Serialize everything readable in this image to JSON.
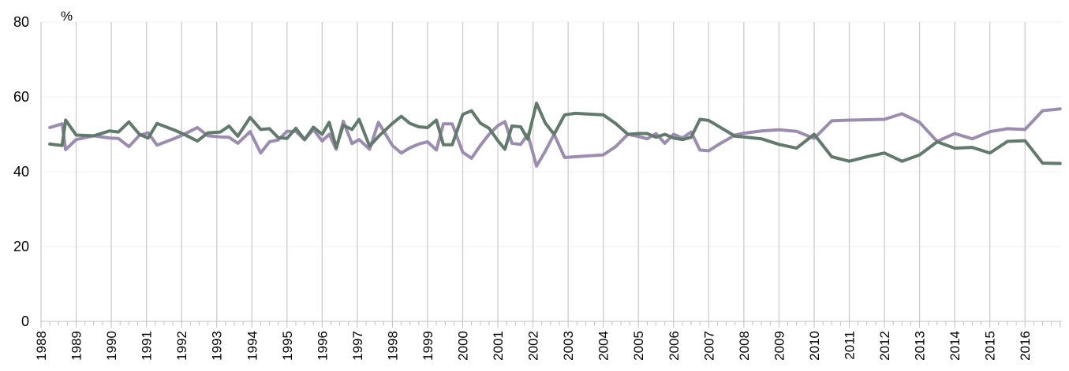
{
  "chart_data": {
    "type": "line",
    "title": "",
    "xlabel": "",
    "ylabel": "%",
    "ylim": [
      0,
      80
    ],
    "yticks": [
      "0",
      "20",
      "40",
      "60",
      "80"
    ],
    "xlim": [
      1988,
      2017.05
    ],
    "xticks": [
      "1988",
      "1989",
      "1990",
      "1991",
      "1992",
      "1993",
      "1994",
      "1995",
      "1996",
      "1997",
      "1998",
      "1999",
      "2000",
      "2001",
      "2002",
      "2003",
      "2004",
      "2005",
      "2006",
      "2007",
      "2008",
      "2009",
      "2010",
      "2011",
      "2012",
      "2013",
      "2014",
      "2015",
      "2016"
    ],
    "grid": "vertical",
    "legend": "none",
    "series": [
      {
        "color": "#9b8cb0",
        "x": [
          1988.25,
          1988.6,
          1988.7,
          1989.0,
          1989.5,
          1989.95,
          1990.2,
          1990.5,
          1990.8,
          1991.05,
          1991.3,
          1991.8,
          1992.05,
          1992.45,
          1992.75,
          1993.1,
          1993.35,
          1993.6,
          1993.95,
          1994.25,
          1994.5,
          1994.75,
          1995.0,
          1995.25,
          1995.5,
          1995.75,
          1996.0,
          1996.2,
          1996.4,
          1996.6,
          1996.85,
          1997.05,
          1997.35,
          1997.6,
          1998.0,
          1998.25,
          1998.5,
          1998.75,
          1999.0,
          1999.25,
          1999.45,
          1999.7,
          2000.0,
          2000.25,
          2000.5,
          2000.75,
          2001.0,
          2001.2,
          2001.4,
          2001.65,
          2001.85,
          2002.1,
          2002.35,
          2002.6,
          2002.9,
          2003.2,
          2004.0,
          2004.35,
          2004.7,
          2005.0,
          2005.25,
          2005.5,
          2005.75,
          2006.0,
          2006.25,
          2006.5,
          2006.75,
          2007.0,
          2007.25,
          2007.75,
          2008.0,
          2008.5,
          2009.0,
          2009.5,
          2010.0,
          2010.5,
          2011.0,
          2011.5,
          2012.0,
          2012.5,
          2013.0,
          2013.5,
          2014.0,
          2014.5,
          2015.0,
          2015.5,
          2016.0,
          2016.5,
          2017.0
        ],
        "y": [
          51.8,
          52.8,
          45.9,
          48.6,
          49.6,
          49.0,
          48.9,
          46.7,
          49.7,
          50.4,
          47.1,
          48.9,
          49.9,
          51.8,
          49.6,
          49.3,
          49.2,
          47.6,
          50.7,
          45.0,
          48.0,
          48.5,
          50.8,
          50.8,
          48.5,
          51.3,
          48.2,
          50.0,
          46.0,
          53.5,
          47.5,
          48.6,
          46.0,
          53.2,
          47.0,
          45.0,
          46.4,
          47.4,
          48.0,
          45.8,
          52.8,
          52.8,
          45.2,
          43.6,
          47.0,
          50.0,
          52.3,
          53.4,
          47.6,
          47.3,
          50.0,
          41.5,
          45.5,
          50.0,
          43.8,
          44.0,
          44.5,
          46.7,
          50.0,
          49.4,
          48.8,
          50.2,
          47.6,
          50.0,
          49.0,
          50.6,
          45.8,
          45.6,
          47.1,
          49.8,
          50.3,
          50.9,
          51.2,
          50.8,
          48.9,
          53.6,
          53.8,
          53.9,
          54.0,
          55.5,
          53.2,
          48.1,
          50.2,
          48.8,
          50.7,
          51.5,
          51.3,
          56.3,
          56.8
        ]
      },
      {
        "color": "#617a6b",
        "x": [
          1988.25,
          1988.6,
          1988.7,
          1989.0,
          1989.5,
          1989.95,
          1990.2,
          1990.5,
          1990.8,
          1991.05,
          1991.3,
          1991.8,
          1992.05,
          1992.45,
          1992.75,
          1993.1,
          1993.35,
          1993.6,
          1993.95,
          1994.25,
          1994.5,
          1994.75,
          1995.0,
          1995.25,
          1995.5,
          1995.75,
          1996.0,
          1996.2,
          1996.4,
          1996.6,
          1996.85,
          1997.05,
          1997.35,
          1997.6,
          1998.0,
          1998.25,
          1998.5,
          1998.75,
          1999.0,
          1999.25,
          1999.45,
          1999.7,
          2000.0,
          2000.25,
          2000.5,
          2000.75,
          2001.0,
          2001.2,
          2001.4,
          2001.65,
          2001.85,
          2002.1,
          2002.35,
          2002.6,
          2002.9,
          2003.2,
          2004.0,
          2004.35,
          2004.7,
          2005.0,
          2005.25,
          2005.5,
          2005.75,
          2006.0,
          2006.25,
          2006.5,
          2006.75,
          2007.0,
          2007.25,
          2007.75,
          2008.0,
          2008.5,
          2009.0,
          2009.5,
          2010.0,
          2010.5,
          2011.0,
          2011.5,
          2012.0,
          2012.5,
          2013.0,
          2013.5,
          2014.0,
          2014.5,
          2015.0,
          2015.5,
          2016.0,
          2016.5,
          2017.0
        ],
        "y": [
          47.4,
          47.0,
          53.8,
          49.8,
          49.6,
          50.9,
          50.6,
          53.3,
          50.0,
          49.0,
          52.9,
          51.1,
          50.1,
          48.2,
          50.4,
          50.6,
          52.2,
          49.5,
          54.5,
          51.3,
          51.5,
          49.1,
          48.9,
          51.6,
          48.6,
          51.9,
          50.0,
          53.2,
          46.5,
          52.4,
          51.3,
          54.0,
          46.8,
          49.4,
          52.9,
          54.8,
          52.9,
          52.0,
          51.8,
          53.8,
          47.2,
          47.2,
          55.3,
          56.3,
          53.0,
          51.6,
          48.3,
          46.0,
          52.2,
          52.0,
          48.7,
          58.3,
          53.0,
          50.0,
          55.2,
          55.6,
          55.2,
          52.9,
          50.0,
          50.2,
          50.2,
          49.2,
          50.0,
          49.0,
          48.6,
          49.2,
          54.0,
          53.7,
          52.3,
          49.5,
          49.3,
          48.8,
          47.3,
          46.3,
          50.0,
          44.0,
          42.8,
          44.0,
          45.0,
          42.8,
          44.5,
          48.0,
          46.3,
          46.5,
          45.0,
          48.1,
          48.3,
          42.3,
          42.2
        ]
      }
    ]
  }
}
